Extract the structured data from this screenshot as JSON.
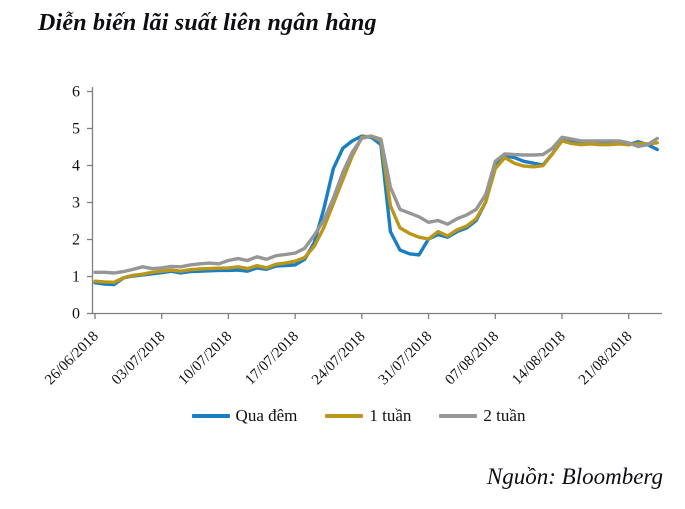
{
  "title": "Diễn biến lãi suất liên ngân hàng",
  "source": "Nguồn: Bloomberg",
  "colors": {
    "overnight_blue": "#1b7ec3",
    "one_week_gold": "#ba9619",
    "two_week_gray": "#969696",
    "axis_gray": "#7f7f7f",
    "text_black": "#111111"
  },
  "chart_data": {
    "type": "line",
    "title": "Diễn biến lãi suất liên ngân hàng",
    "ylabel": "",
    "xlabel": "",
    "ylim": [
      0,
      6
    ],
    "y_ticks": [
      0,
      1,
      2,
      3,
      4,
      5,
      6
    ],
    "grid": false,
    "legend_position": "bottom",
    "x_unit": "days since 26/06/2018 (daily points)",
    "x_tick_days": [
      0,
      7,
      14,
      21,
      28,
      35,
      42,
      49,
      56
    ],
    "x_tick_labels": [
      "26/06/2018",
      "03/07/2018",
      "10/07/2018",
      "17/07/2018",
      "24/07/2018",
      "31/07/2018",
      "07/08/2018",
      "14/08/2018",
      "21/08/2018"
    ],
    "x_days": [
      0,
      1,
      2,
      3,
      4,
      5,
      6,
      7,
      8,
      9,
      10,
      11,
      12,
      13,
      14,
      15,
      16,
      17,
      18,
      19,
      20,
      21,
      22,
      23,
      24,
      25,
      26,
      27,
      28,
      29,
      30,
      31,
      32,
      33,
      34,
      35,
      36,
      37,
      38,
      39,
      40,
      41,
      42,
      43,
      44,
      45,
      46,
      47,
      48,
      49,
      50,
      51,
      52,
      53,
      54,
      55,
      56,
      57,
      58,
      59
    ],
    "series": [
      {
        "name": "Qua đêm",
        "color": "#1b7ec3",
        "values": [
          0.82,
          0.78,
          0.77,
          0.95,
          1.0,
          1.03,
          1.06,
          1.09,
          1.13,
          1.08,
          1.12,
          1.13,
          1.14,
          1.15,
          1.15,
          1.16,
          1.13,
          1.22,
          1.18,
          1.27,
          1.28,
          1.3,
          1.45,
          1.9,
          2.8,
          3.9,
          4.45,
          4.65,
          4.78,
          4.75,
          4.55,
          2.2,
          1.7,
          1.6,
          1.57,
          2.0,
          2.12,
          2.05,
          2.2,
          2.3,
          2.5,
          3.0,
          4.0,
          4.25,
          4.2,
          4.1,
          4.05,
          4.0,
          4.3,
          4.68,
          4.62,
          4.58,
          4.6,
          4.58,
          4.57,
          4.6,
          4.55,
          4.63,
          4.55,
          4.42
        ]
      },
      {
        "name": "1 tuần",
        "color": "#ba9619",
        "values": [
          0.86,
          0.84,
          0.83,
          0.95,
          1.02,
          1.05,
          1.1,
          1.13,
          1.16,
          1.13,
          1.17,
          1.19,
          1.2,
          1.21,
          1.22,
          1.25,
          1.2,
          1.28,
          1.22,
          1.32,
          1.35,
          1.4,
          1.5,
          1.8,
          2.3,
          2.95,
          3.6,
          4.25,
          4.75,
          4.78,
          4.65,
          2.9,
          2.3,
          2.15,
          2.05,
          2.0,
          2.2,
          2.08,
          2.25,
          2.35,
          2.55,
          3.0,
          3.9,
          4.2,
          4.05,
          3.97,
          3.95,
          3.98,
          4.3,
          4.65,
          4.58,
          4.55,
          4.57,
          4.55,
          4.55,
          4.57,
          4.55,
          4.58,
          4.57,
          4.6
        ]
      },
      {
        "name": "2 tuần",
        "color": "#969696",
        "values": [
          1.1,
          1.1,
          1.08,
          1.12,
          1.18,
          1.25,
          1.2,
          1.22,
          1.26,
          1.25,
          1.3,
          1.33,
          1.35,
          1.33,
          1.42,
          1.47,
          1.42,
          1.52,
          1.45,
          1.55,
          1.58,
          1.62,
          1.75,
          2.1,
          2.5,
          3.1,
          3.8,
          4.35,
          4.72,
          4.78,
          4.7,
          3.4,
          2.8,
          2.7,
          2.6,
          2.45,
          2.5,
          2.4,
          2.55,
          2.65,
          2.8,
          3.2,
          4.1,
          4.3,
          4.28,
          4.27,
          4.27,
          4.28,
          4.45,
          4.75,
          4.7,
          4.65,
          4.65,
          4.65,
          4.65,
          4.65,
          4.6,
          4.5,
          4.55,
          4.72
        ]
      }
    ]
  },
  "legend": {
    "items": [
      "Qua đêm",
      "1 tuần",
      "2 tuần"
    ]
  }
}
